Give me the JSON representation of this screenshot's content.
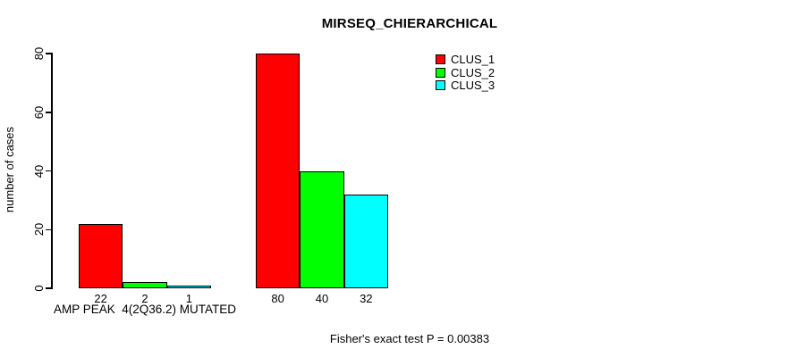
{
  "chart_data": {
    "type": "bar",
    "title": "MIRSEQ_CHIERARCHICAL",
    "ylabel": "number of cases",
    "xlabel": "",
    "ylim": [
      0,
      80
    ],
    "yticks": [
      0,
      20,
      40,
      60,
      80
    ],
    "grid": false,
    "bar_border_color": "#000000",
    "series": [
      {
        "name": "CLUS_1",
        "color": "#ff0000"
      },
      {
        "name": "CLUS_2",
        "color": "#00ff00"
      },
      {
        "name": "CLUS_3",
        "color": "#00ffff"
      }
    ],
    "groups": [
      {
        "label": "AMP PEAK  4(2Q36.2) MUTATED",
        "values": [
          22,
          2,
          1
        ]
      },
      {
        "label": "",
        "values": [
          80,
          40,
          32
        ]
      }
    ],
    "bar_value_labels_shown": true,
    "legend": {
      "position": "inside-top, right of plot center",
      "entries": [
        "CLUS_1",
        "CLUS_2",
        "CLUS_3"
      ]
    },
    "footer": "Fisher's exact test P = 0.00383"
  }
}
